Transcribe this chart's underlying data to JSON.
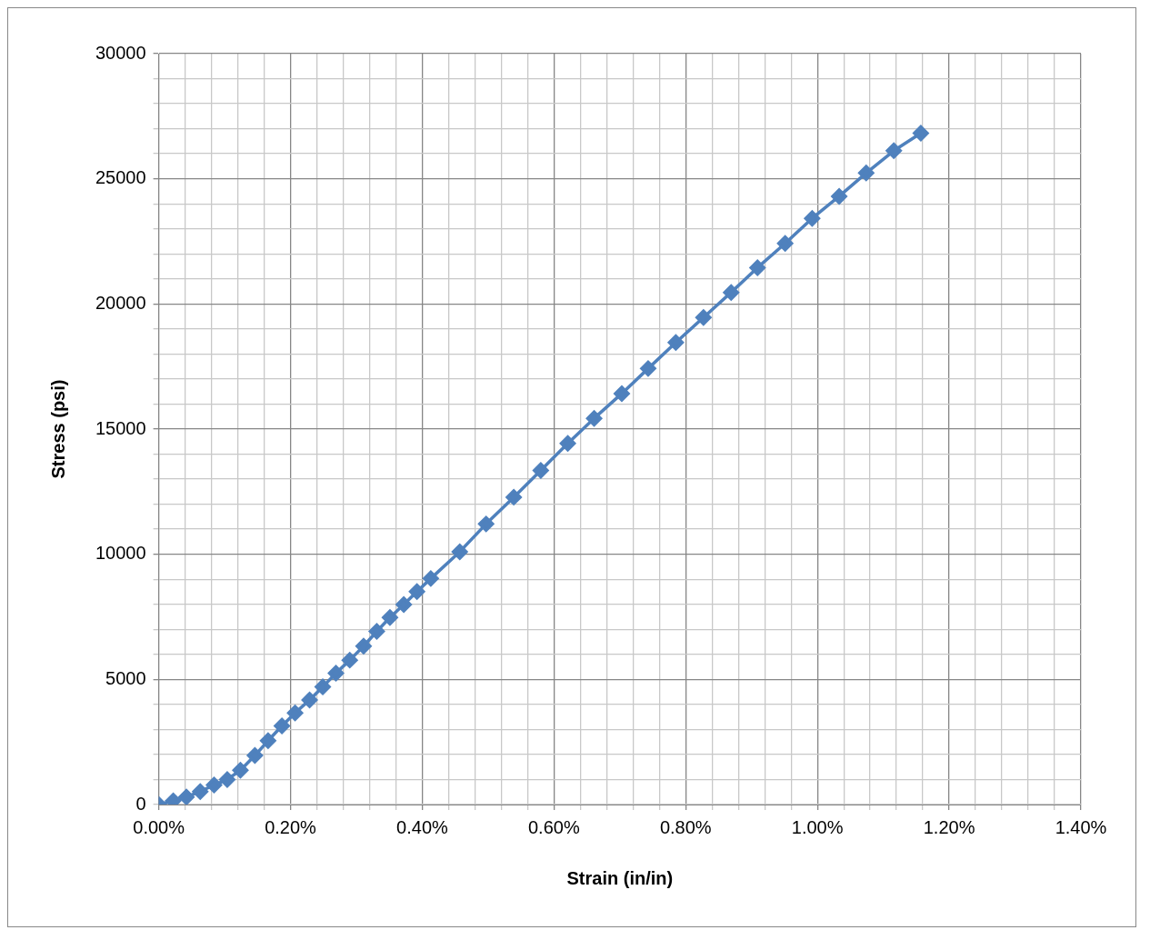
{
  "chart_data": {
    "type": "line",
    "xlabel": "Strain (in/in)",
    "ylabel": "Stress (psi)",
    "marker": "diamond",
    "grid": true,
    "legend": false,
    "xlim": [
      0,
      0.014
    ],
    "ylim": [
      0,
      30000
    ],
    "xticks": [
      {
        "value": 0,
        "label": "0.00%"
      },
      {
        "value": 0.0004,
        "label": null
      },
      {
        "value": 0.0008,
        "label": null
      },
      {
        "value": 0.0012,
        "label": null
      },
      {
        "value": 0.0016,
        "label": null
      },
      {
        "value": 0.002,
        "label": "0.20%"
      },
      {
        "value": 0.0024,
        "label": null
      },
      {
        "value": 0.0028,
        "label": null
      },
      {
        "value": 0.0032,
        "label": null
      },
      {
        "value": 0.0036,
        "label": null
      },
      {
        "value": 0.004,
        "label": "0.40%"
      },
      {
        "value": 0.0044,
        "label": null
      },
      {
        "value": 0.0048,
        "label": null
      },
      {
        "value": 0.0052,
        "label": null
      },
      {
        "value": 0.0056,
        "label": null
      },
      {
        "value": 0.006,
        "label": "0.60%"
      },
      {
        "value": 0.0064,
        "label": null
      },
      {
        "value": 0.0068,
        "label": null
      },
      {
        "value": 0.0072,
        "label": null
      },
      {
        "value": 0.0076,
        "label": null
      },
      {
        "value": 0.008,
        "label": "0.80%"
      },
      {
        "value": 0.0084,
        "label": null
      },
      {
        "value": 0.0088,
        "label": null
      },
      {
        "value": 0.0092,
        "label": null
      },
      {
        "value": 0.0096,
        "label": null
      },
      {
        "value": 0.01,
        "label": "1.00%"
      },
      {
        "value": 0.0104,
        "label": null
      },
      {
        "value": 0.0108,
        "label": null
      },
      {
        "value": 0.0112,
        "label": null
      },
      {
        "value": 0.0116,
        "label": null
      },
      {
        "value": 0.012,
        "label": "1.20%"
      },
      {
        "value": 0.0124,
        "label": null
      },
      {
        "value": 0.0128,
        "label": null
      },
      {
        "value": 0.0132,
        "label": null
      },
      {
        "value": 0.0136,
        "label": null
      },
      {
        "value": 0.014,
        "label": "1.40%"
      }
    ],
    "yticks": [
      0,
      {
        "value": 1000,
        "label": null
      },
      {
        "value": 2000,
        "label": null
      },
      {
        "value": 3000,
        "label": null
      },
      {
        "value": 4000,
        "label": null
      },
      5000,
      {
        "value": 6000,
        "label": null
      },
      {
        "value": 7000,
        "label": null
      },
      {
        "value": 8000,
        "label": null
      },
      {
        "value": 9000,
        "label": null
      },
      10000,
      {
        "value": 11000,
        "label": null
      },
      {
        "value": 12000,
        "label": null
      },
      {
        "value": 13000,
        "label": null
      },
      {
        "value": 14000,
        "label": null
      },
      15000,
      {
        "value": 16000,
        "label": null
      },
      {
        "value": 17000,
        "label": null
      },
      {
        "value": 18000,
        "label": null
      },
      {
        "value": 19000,
        "label": null
      },
      20000,
      {
        "value": 21000,
        "label": null
      },
      {
        "value": 22000,
        "label": null
      },
      {
        "value": 23000,
        "label": null
      },
      {
        "value": 24000,
        "label": null
      },
      25000,
      {
        "value": 26000,
        "label": null
      },
      {
        "value": 27000,
        "label": null
      },
      {
        "value": 28000,
        "label": null
      },
      {
        "value": 29000,
        "label": null
      },
      30000
    ],
    "x": [
      0,
      0.00022,
      0.00042,
      0.00063,
      0.00084,
      0.00104,
      0.00124,
      0.00146,
      0.00166,
      0.00187,
      0.00207,
      0.00229,
      0.00249,
      0.00269,
      0.0029,
      0.00311,
      0.00331,
      0.00351,
      0.00372,
      0.00392,
      0.00413,
      0.00457,
      0.00497,
      0.00539,
      0.0058,
      0.00621,
      0.00661,
      0.00703,
      0.00743,
      0.00785,
      0.00827,
      0.00869,
      0.00909,
      0.00951,
      0.00992,
      0.01033,
      0.01074,
      0.01116,
      0.01157
    ],
    "series": [
      {
        "color": "#4f81bd",
        "values": [
          0,
          150,
          300,
          520,
          780,
          1000,
          1370,
          1960,
          2550,
          3140,
          3660,
          4180,
          4700,
          5250,
          5770,
          6330,
          6920,
          7470,
          7990,
          8510,
          9030,
          10100,
          11210,
          12280,
          13350,
          14430,
          15430,
          16420,
          17420,
          18460,
          19460,
          20460,
          21450,
          22420,
          23420,
          24300,
          25230,
          26120,
          26820
        ]
      }
    ]
  }
}
